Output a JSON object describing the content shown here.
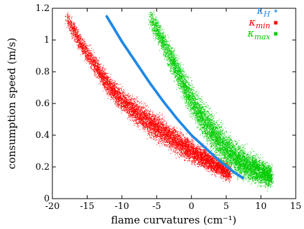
{
  "chart_data": {
    "type": "scatter",
    "xlabel": "flame curvatures   (cm⁻¹)",
    "ylabel": "consumption speed   (m/s)",
    "xlim": [
      -20,
      15
    ],
    "ylim": [
      0,
      1.2
    ],
    "x_ticks": [
      -20,
      -15,
      -10,
      -5,
      0,
      5,
      10,
      15
    ],
    "x_tick_labels": [
      "-20",
      "-15",
      "-10",
      "-5",
      "0",
      "5",
      "10",
      "15"
    ],
    "y_ticks": [
      0,
      0.2,
      0.4,
      0.6,
      0.8,
      1,
      1.2
    ],
    "y_tick_labels": [
      "0",
      "0.2",
      "0.4",
      "0.6",
      "0.8",
      "1",
      "1.2"
    ],
    "grid": false,
    "legend_position": "top-right",
    "series": [
      {
        "name": "κH",
        "color": "#1e88e5",
        "marker": "plus",
        "points": [
          [
            -12.2,
            1.15
          ],
          [
            -10,
            0.99
          ],
          [
            -8,
            0.86
          ],
          [
            -6,
            0.73
          ],
          [
            -4,
            0.61
          ],
          [
            -2,
            0.5
          ],
          [
            0,
            0.4
          ],
          [
            2,
            0.32
          ],
          [
            4,
            0.24
          ],
          [
            6,
            0.17
          ],
          [
            7.4,
            0.13
          ]
        ]
      },
      {
        "name": "κmin",
        "color": "#ff0000",
        "marker": "square",
        "points": [
          [
            -18,
            1.15
          ],
          [
            -16,
            0.98
          ],
          [
            -14,
            0.85
          ],
          [
            -12,
            0.72
          ],
          [
            -10,
            0.62
          ],
          [
            -8,
            0.55
          ],
          [
            -6,
            0.48
          ],
          [
            -4,
            0.42
          ],
          [
            -2,
            0.36
          ],
          [
            0,
            0.3
          ],
          [
            2,
            0.25
          ],
          [
            4,
            0.2
          ],
          [
            5.5,
            0.16
          ]
        ]
      },
      {
        "name": "κmax",
        "color": "#00cc00",
        "marker": "square",
        "points": [
          [
            -6,
            1.15
          ],
          [
            -4,
            0.98
          ],
          [
            -2,
            0.8
          ],
          [
            0,
            0.62
          ],
          [
            2,
            0.48
          ],
          [
            4,
            0.36
          ],
          [
            6,
            0.27
          ],
          [
            8,
            0.21
          ],
          [
            10,
            0.17
          ],
          [
            11.5,
            0.14
          ]
        ]
      }
    ]
  }
}
